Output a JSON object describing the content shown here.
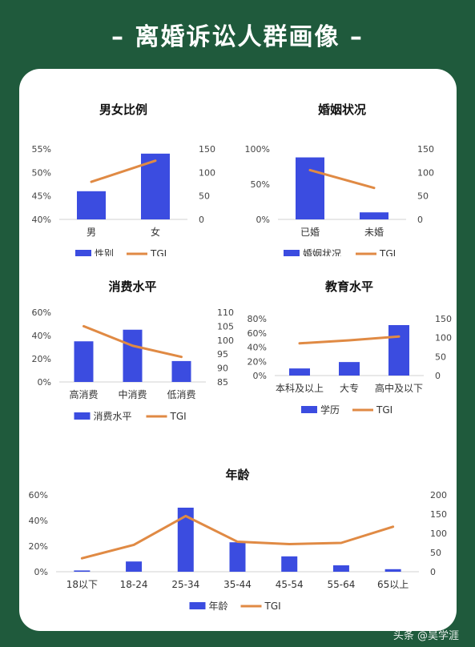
{
  "page": {
    "title": "– 离婚诉讼人群画像 –",
    "watermark": "头条 @吴学涯",
    "bar_color": "#3b4ce0",
    "line_color": "#e08a44"
  },
  "chart_data": [
    {
      "id": "gender",
      "type": "bar",
      "title": "男女比例",
      "categories": [
        "男",
        "女"
      ],
      "series": [
        {
          "name": "性别",
          "axis": "left",
          "values": [
            46,
            54
          ]
        },
        {
          "name": "TGI",
          "axis": "right",
          "type": "line",
          "values": [
            80,
            125
          ]
        }
      ],
      "left_ticks": [
        "55%",
        "50%",
        "45%",
        "40%"
      ],
      "left_range": [
        40,
        55
      ],
      "right_ticks": [
        "150",
        "100",
        "50",
        "0"
      ],
      "right_range": [
        0,
        150
      ],
      "legend": "bottom"
    },
    {
      "id": "marital",
      "type": "bar",
      "title": "婚姻状况",
      "categories": [
        "已婚",
        "未婚"
      ],
      "series": [
        {
          "name": "婚姻状况",
          "axis": "left",
          "values": [
            88,
            10
          ]
        },
        {
          "name": "TGI",
          "axis": "right",
          "type": "line",
          "values": [
            105,
            67
          ]
        }
      ],
      "left_ticks": [
        "100%",
        "50%",
        "0%"
      ],
      "left_range": [
        0,
        100
      ],
      "right_ticks": [
        "150",
        "100",
        "50",
        "0"
      ],
      "right_range": [
        0,
        150
      ],
      "legend": "bottom"
    },
    {
      "id": "consumption",
      "type": "bar",
      "title": "消费水平",
      "categories": [
        "高消费",
        "中消费",
        "低消费"
      ],
      "series": [
        {
          "name": "消费水平",
          "axis": "left",
          "values": [
            35,
            45,
            18
          ]
        },
        {
          "name": "TGI",
          "axis": "right",
          "type": "line",
          "values": [
            105,
            98,
            94
          ]
        }
      ],
      "left_ticks": [
        "60%",
        "40%",
        "20%",
        "0%"
      ],
      "left_range": [
        0,
        60
      ],
      "right_ticks": [
        "110",
        "105",
        "100",
        "95",
        "90",
        "85"
      ],
      "right_range": [
        85,
        110
      ],
      "legend": "bottom"
    },
    {
      "id": "education",
      "type": "bar",
      "title": "教育水平",
      "categories": [
        "本科及以上",
        "大专",
        "高中及以下"
      ],
      "series": [
        {
          "name": "学历",
          "axis": "left",
          "values": [
            10,
            19,
            71
          ]
        },
        {
          "name": "TGI",
          "axis": "right",
          "type": "line",
          "values": [
            85,
            93,
            103
          ]
        }
      ],
      "left_ticks": [
        "80%",
        "60%",
        "40%",
        "20%",
        "0%"
      ],
      "left_range": [
        0,
        80
      ],
      "right_ticks": [
        "150",
        "100",
        "50",
        "0"
      ],
      "right_range": [
        0,
        150
      ],
      "legend": "bottom"
    },
    {
      "id": "age",
      "type": "bar",
      "title": "年龄",
      "categories": [
        "18以下",
        "18-24",
        "25-34",
        "35-44",
        "45-54",
        "55-64",
        "65以上"
      ],
      "series": [
        {
          "name": "年龄",
          "axis": "left",
          "values": [
            1,
            8,
            50,
            23,
            12,
            5,
            2
          ]
        },
        {
          "name": "TGI",
          "axis": "right",
          "type": "line",
          "values": [
            35,
            70,
            145,
            78,
            72,
            75,
            117
          ]
        }
      ],
      "left_ticks": [
        "60%",
        "40%",
        "20%",
        "0%"
      ],
      "left_range": [
        0,
        60
      ],
      "right_ticks": [
        "200",
        "150",
        "100",
        "50",
        "0"
      ],
      "right_range": [
        0,
        200
      ],
      "legend": "bottom"
    }
  ]
}
